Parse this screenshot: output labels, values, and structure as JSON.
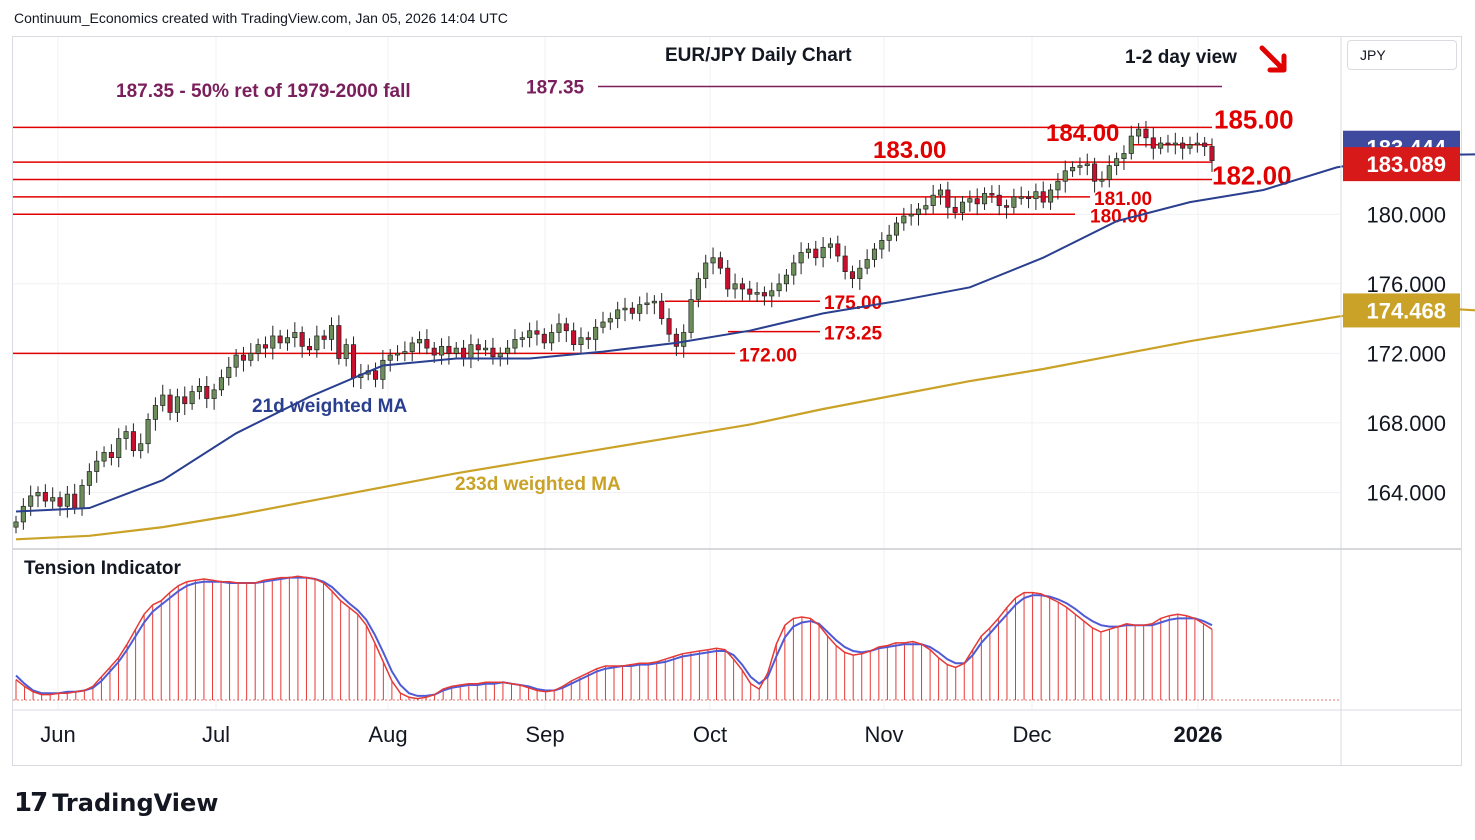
{
  "header": {
    "credit": "Continuum_Economics created with TradingView.com, Jan 05, 2026 14:04 UTC"
  },
  "brand": {
    "logo_mark": "17",
    "logo_text": "TradingView"
  },
  "currency_label": "JPY",
  "annotations": {
    "title": "EUR/JPY Daily Chart",
    "view": "1-2 day view",
    "ret_label": "187.35 - 50% ret of 1979-2000 fall",
    "ret_level": "187.35",
    "ma21_label": "21d weighted MA",
    "ma233_label": "233d weighted MA",
    "tension_label": "Tension Indicator"
  },
  "colors": {
    "up_candle": "#6b8e5a",
    "down_candle": "#c8102e",
    "level_line": "#e00000",
    "ma21": "#2a3f8f",
    "ma233": "#c9a227",
    "ret_color": "#7a1f5c",
    "tension_fast": "#e53935",
    "tension_slow": "#4f5bd5",
    "arrow": "#e00000"
  },
  "price_badges": [
    {
      "value": "183.444",
      "bg": "#3d4a9e"
    },
    {
      "value": "183.089",
      "bg": "#d81919"
    },
    {
      "value": "174.468",
      "bg": "#c9a227"
    }
  ],
  "chart_data": [
    {
      "type": "candlestick",
      "title": "EUR/JPY Daily Chart",
      "x_axis_labels": [
        "Jun",
        "Jul",
        "Aug",
        "Sep",
        "Oct",
        "Nov",
        "Dec",
        "2026"
      ],
      "y_axis_labels": [
        "180.000",
        "176.000",
        "172.000",
        "168.000",
        "164.000"
      ],
      "ylim": [
        160.8,
        190.2
      ],
      "levels": [
        {
          "value": 185.0,
          "label": "185.00"
        },
        {
          "value": 184.0,
          "label": "184.00"
        },
        {
          "value": 183.0,
          "label": "183.00"
        },
        {
          "value": 182.0,
          "label": "182.00"
        },
        {
          "value": 181.0,
          "label": "181.00"
        },
        {
          "value": 180.0,
          "label": "180.00"
        },
        {
          "value": 175.0,
          "label": "175.00"
        },
        {
          "value": 173.25,
          "label": "173.25"
        },
        {
          "value": 172.0,
          "label": "172.00"
        },
        {
          "value": 187.35,
          "label": "187.35"
        }
      ],
      "closes": [
        162.3,
        163.2,
        163.8,
        164.0,
        163.5,
        163.7,
        163.2,
        163.9,
        163.1,
        164.4,
        165.2,
        165.8,
        166.3,
        166.0,
        167.1,
        167.5,
        166.4,
        166.8,
        168.2,
        169.0,
        169.6,
        168.6,
        169.5,
        169.1,
        169.8,
        170.1,
        169.4,
        169.9,
        170.6,
        171.2,
        171.9,
        171.6,
        172.0,
        172.5,
        172.3,
        173.0,
        172.6,
        172.9,
        173.2,
        172.4,
        172.2,
        173.0,
        172.8,
        173.6,
        171.7,
        172.5,
        170.6,
        170.8,
        171.0,
        170.5,
        171.6,
        171.9,
        172.0,
        172.1,
        172.6,
        172.8,
        172.3,
        171.9,
        172.4,
        172.0,
        172.3,
        171.7,
        172.5,
        172.2,
        172.3,
        171.8,
        172.0,
        172.3,
        172.8,
        172.9,
        173.3,
        173.1,
        172.6,
        173.2,
        173.7,
        173.3,
        172.5,
        172.9,
        172.8,
        173.5,
        173.8,
        174.0,
        174.5,
        174.6,
        174.3,
        174.8,
        174.9,
        175.0,
        174.0,
        173.1,
        172.4,
        173.2,
        175.1,
        176.3,
        177.2,
        177.5,
        176.9,
        175.7,
        176.0,
        175.7,
        175.4,
        175.5,
        175.3,
        175.6,
        176.0,
        176.5,
        177.2,
        177.8,
        178.0,
        177.5,
        178.1,
        178.3,
        177.6,
        176.7,
        176.3,
        176.9,
        177.4,
        178.0,
        178.5,
        178.8,
        179.5,
        179.9,
        180.0,
        180.3,
        180.5,
        181.1,
        181.4,
        180.4,
        180.1,
        180.7,
        180.9,
        180.6,
        181.2,
        181.1,
        180.5,
        180.4,
        181.0,
        181.0,
        180.9,
        181.3,
        180.7,
        181.4,
        181.9,
        182.5,
        182.7,
        182.8,
        182.9,
        181.9,
        182.0,
        182.8,
        183.2,
        183.5,
        184.5,
        184.9,
        184.4,
        183.8,
        184.1,
        184.0,
        184.1,
        183.8,
        184.0,
        184.1,
        183.9,
        183.089
      ]
    },
    {
      "type": "line",
      "name": "21d weighted MA",
      "role": "price-overlay",
      "x": [
        0,
        10,
        20,
        30,
        40,
        50,
        60,
        70,
        80,
        90,
        100,
        110,
        120,
        130,
        140,
        150,
        160,
        170,
        180,
        190,
        199
      ],
      "values": [
        162.9,
        163.1,
        164.7,
        167.4,
        169.5,
        171.3,
        171.7,
        171.7,
        172.1,
        172.6,
        173.3,
        174.3,
        175.0,
        175.8,
        177.5,
        179.6,
        180.7,
        181.4,
        182.7,
        183.4,
        183.444
      ]
    },
    {
      "type": "line",
      "name": "233d weighted MA",
      "role": "price-overlay",
      "x": [
        0,
        10,
        20,
        30,
        40,
        50,
        60,
        70,
        80,
        90,
        100,
        110,
        120,
        130,
        140,
        150,
        160,
        170,
        180,
        190,
        199
      ],
      "values": [
        161.3,
        161.5,
        162.0,
        162.7,
        163.5,
        164.3,
        165.1,
        165.8,
        166.5,
        167.2,
        167.9,
        168.8,
        169.6,
        170.4,
        171.1,
        171.9,
        172.7,
        173.4,
        174.1,
        174.7,
        174.468
      ]
    },
    {
      "type": "bar",
      "name": "Tension Indicator",
      "ylim": [
        0,
        100
      ],
      "values": [
        15,
        10,
        6,
        4,
        4,
        5,
        5,
        6,
        7,
        10,
        17,
        24,
        31,
        41,
        52,
        63,
        70,
        73,
        79,
        84,
        87,
        88,
        89,
        88,
        87,
        87,
        86,
        86,
        86,
        88,
        89,
        90,
        90,
        91,
        90,
        89,
        86,
        80,
        73,
        68,
        63,
        55,
        42,
        28,
        14,
        5,
        2,
        1,
        2,
        4,
        8,
        10,
        11,
        12,
        12,
        13,
        13,
        13,
        12,
        11,
        9,
        7,
        6,
        7,
        10,
        14,
        17,
        20,
        23,
        25,
        25,
        25,
        26,
        27,
        27,
        28,
        30,
        32,
        34,
        35,
        36,
        37,
        38,
        37,
        30,
        22,
        12,
        8,
        20,
        41,
        55,
        60,
        61,
        60,
        55,
        47,
        40,
        35,
        33,
        34,
        36,
        39,
        40,
        42,
        42,
        43,
        41,
        37,
        31,
        26,
        24,
        27,
        37,
        47,
        53,
        60,
        68,
        75,
        79,
        79,
        78,
        75,
        72,
        68,
        63,
        58,
        53,
        50,
        52,
        54,
        56,
        55,
        55,
        56,
        60,
        62,
        63,
        62,
        60,
        56,
        52
      ],
      "signal": [
        18,
        12,
        7,
        5,
        5,
        5,
        6,
        6,
        7,
        9,
        14,
        21,
        28,
        37,
        47,
        57,
        65,
        70,
        75,
        80,
        84,
        86,
        87,
        87,
        87,
        86,
        86,
        86,
        86,
        87,
        88,
        89,
        90,
        90,
        90,
        89,
        87,
        83,
        77,
        71,
        66,
        59,
        48,
        35,
        21,
        11,
        5,
        3,
        3,
        4,
        7,
        9,
        10,
        11,
        11,
        12,
        12,
        13,
        12,
        11,
        10,
        8,
        7,
        7,
        9,
        12,
        15,
        18,
        21,
        23,
        24,
        25,
        25,
        26,
        26,
        27,
        28,
        30,
        32,
        33,
        34,
        35,
        36,
        36,
        33,
        26,
        17,
        12,
        17,
        32,
        46,
        54,
        57,
        58,
        56,
        50,
        44,
        39,
        36,
        35,
        36,
        38,
        39,
        40,
        41,
        41,
        41,
        39,
        35,
        30,
        27,
        27,
        33,
        42,
        49,
        56,
        63,
        70,
        75,
        77,
        77,
        76,
        74,
        71,
        67,
        62,
        58,
        55,
        54,
        54,
        55,
        55,
        55,
        55,
        57,
        59,
        60,
        60,
        60,
        58,
        55
      ]
    }
  ]
}
